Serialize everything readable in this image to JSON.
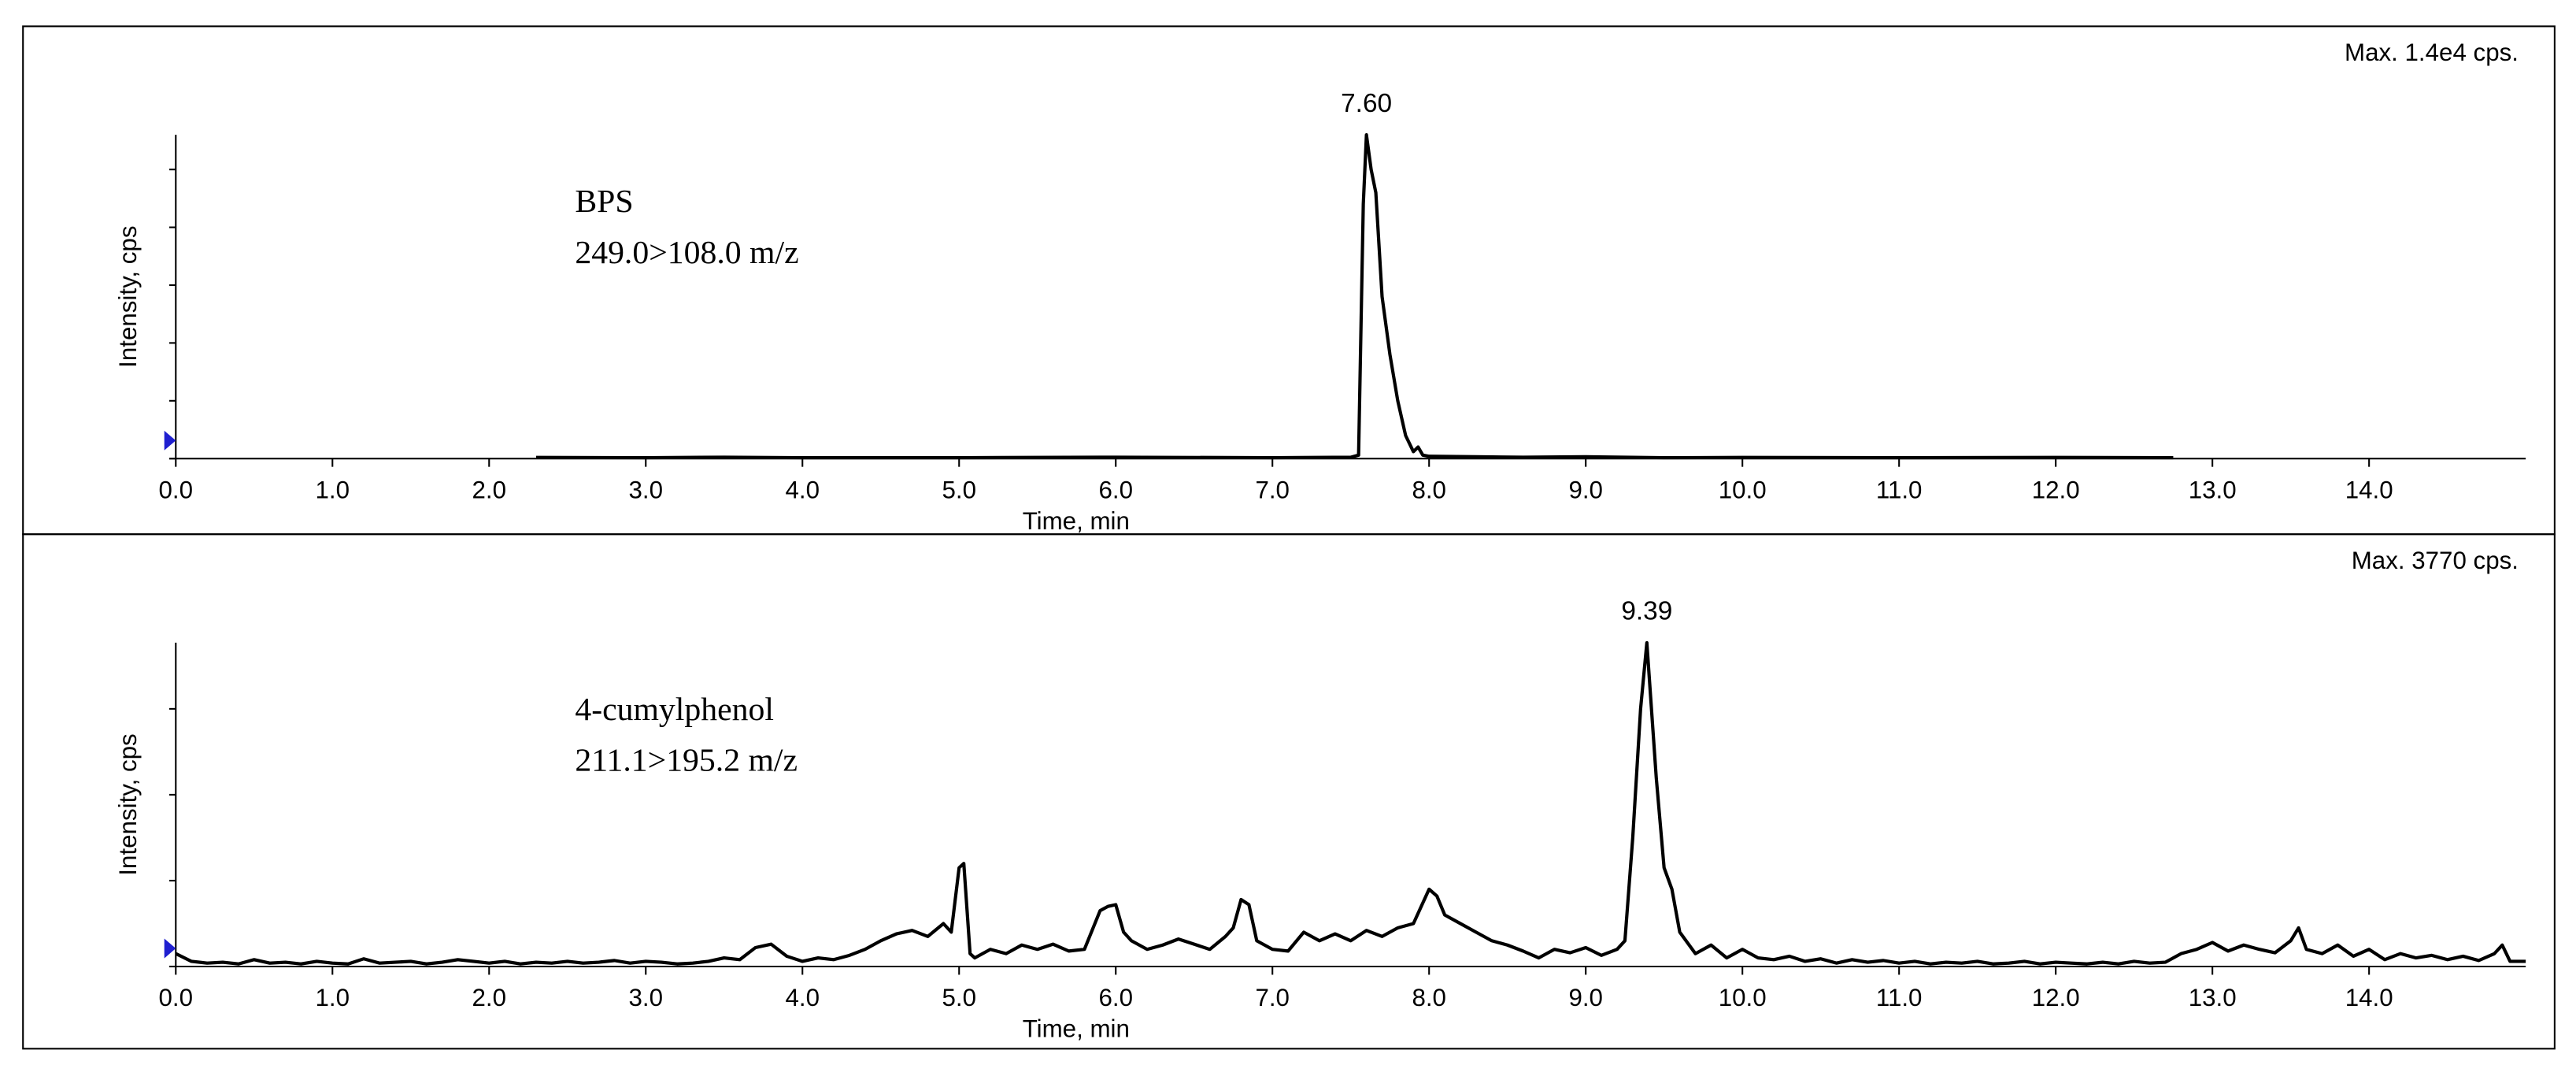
{
  "chart_data": [
    {
      "type": "line",
      "color": "#000000",
      "max_label": "Max. 1.4e4 cps.",
      "compound": "BPS",
      "transition": "249.0>108.0 m/z",
      "peak_label": "7.60",
      "xlabel": "Time, min",
      "ylabel": "Intensity, cps",
      "xlim": [
        0,
        15
      ],
      "ylim": [
        0,
        14000
      ],
      "xticks": [
        {
          "value": 0,
          "label": "0.0"
        },
        {
          "value": 1,
          "label": "1.0"
        },
        {
          "value": 2,
          "label": "2.0"
        },
        {
          "value": 3,
          "label": "3.0"
        },
        {
          "value": 4,
          "label": "4.0"
        },
        {
          "value": 5,
          "label": "5.0"
        },
        {
          "value": 6,
          "label": "6.0"
        },
        {
          "value": 7,
          "label": "7.0"
        },
        {
          "value": 8,
          "label": "8.0"
        },
        {
          "value": 9,
          "label": "9.0"
        },
        {
          "value": 10,
          "label": "10.0"
        },
        {
          "value": 11,
          "label": "11.0"
        },
        {
          "value": 12,
          "label": "12.0"
        },
        {
          "value": 13,
          "label": "13.0"
        },
        {
          "value": 14,
          "label": "14.0"
        }
      ],
      "yticks": [
        0,
        2500,
        5000,
        7500,
        10000,
        12500
      ],
      "x": [
        2.3,
        3.0,
        3.5,
        4.0,
        5.0,
        6.0,
        7.0,
        7.5,
        7.55,
        7.58,
        7.6,
        7.63,
        7.66,
        7.7,
        7.75,
        7.8,
        7.85,
        7.9,
        7.93,
        7.96,
        8.0,
        8.3,
        8.6,
        9.0,
        9.5,
        10.0,
        11.0,
        12.0,
        12.75
      ],
      "values": [
        50,
        40,
        60,
        40,
        40,
        60,
        40,
        60,
        150,
        11000,
        14000,
        12500,
        11500,
        7000,
        4500,
        2500,
        1000,
        300,
        500,
        150,
        100,
        80,
        60,
        80,
        40,
        50,
        40,
        50,
        40
      ]
    },
    {
      "type": "line",
      "color": "#000000",
      "max_label": "Max. 3770 cps.",
      "compound": "4-cumylphenol",
      "transition": "211.1>195.2 m/z",
      "peak_label": "9.39",
      "xlabel": "Time, min",
      "ylabel": "Intensity, cps",
      "xlim": [
        0,
        15
      ],
      "ylim": [
        0,
        3770
      ],
      "xticks": [
        {
          "value": 0,
          "label": "0.0"
        },
        {
          "value": 1,
          "label": "1.0"
        },
        {
          "value": 2,
          "label": "2.0"
        },
        {
          "value": 3,
          "label": "3.0"
        },
        {
          "value": 4,
          "label": "4.0"
        },
        {
          "value": 5,
          "label": "5.0"
        },
        {
          "value": 6,
          "label": "6.0"
        },
        {
          "value": 7,
          "label": "7.0"
        },
        {
          "value": 8,
          "label": "8.0"
        },
        {
          "value": 9,
          "label": "9.0"
        },
        {
          "value": 10,
          "label": "10.0"
        },
        {
          "value": 11,
          "label": "11.0"
        },
        {
          "value": 12,
          "label": "12.0"
        },
        {
          "value": 13,
          "label": "13.0"
        },
        {
          "value": 14,
          "label": "14.0"
        }
      ],
      "yticks": [
        0,
        1000,
        2000,
        3000
      ],
      "x": [
        0.0,
        0.1,
        0.2,
        0.3,
        0.4,
        0.5,
        0.6,
        0.7,
        0.8,
        0.9,
        1.0,
        1.1,
        1.2,
        1.3,
        1.4,
        1.5,
        1.6,
        1.7,
        1.8,
        1.9,
        2.0,
        2.1,
        2.2,
        2.3,
        2.4,
        2.5,
        2.6,
        2.7,
        2.8,
        2.9,
        3.0,
        3.1,
        3.2,
        3.3,
        3.4,
        3.5,
        3.6,
        3.7,
        3.8,
        3.9,
        4.0,
        4.1,
        4.2,
        4.3,
        4.4,
        4.5,
        4.6,
        4.7,
        4.8,
        4.9,
        4.95,
        5.0,
        5.03,
        5.07,
        5.1,
        5.2,
        5.3,
        5.4,
        5.5,
        5.6,
        5.7,
        5.8,
        5.9,
        5.95,
        6.0,
        6.05,
        6.1,
        6.2,
        6.3,
        6.4,
        6.5,
        6.6,
        6.7,
        6.75,
        6.8,
        6.85,
        6.9,
        7.0,
        7.1,
        7.2,
        7.3,
        7.4,
        7.5,
        7.6,
        7.7,
        7.8,
        7.9,
        8.0,
        8.05,
        8.1,
        8.2,
        8.3,
        8.4,
        8.5,
        8.6,
        8.7,
        8.8,
        8.9,
        9.0,
        9.1,
        9.2,
        9.25,
        9.3,
        9.35,
        9.39,
        9.45,
        9.5,
        9.55,
        9.6,
        9.7,
        9.8,
        9.9,
        10.0,
        10.1,
        10.2,
        10.3,
        10.4,
        10.5,
        10.6,
        10.7,
        10.8,
        10.9,
        11.0,
        11.1,
        11.2,
        11.3,
        11.4,
        11.5,
        11.6,
        11.7,
        11.8,
        11.9,
        12.0,
        12.1,
        12.2,
        12.3,
        12.4,
        12.5,
        12.6,
        12.7,
        12.8,
        12.9,
        13.0,
        13.1,
        13.2,
        13.3,
        13.4,
        13.5,
        13.55,
        13.6,
        13.7,
        13.8,
        13.9,
        14.0,
        14.1,
        14.2,
        14.3,
        14.4,
        14.5,
        14.6,
        14.7,
        14.8,
        14.85,
        14.9,
        15.0
      ],
      "values": [
        150,
        60,
        40,
        50,
        30,
        80,
        40,
        50,
        30,
        60,
        40,
        30,
        90,
        40,
        50,
        60,
        30,
        50,
        80,
        60,
        40,
        60,
        30,
        50,
        40,
        60,
        40,
        50,
        70,
        40,
        60,
        50,
        30,
        40,
        60,
        100,
        80,
        220,
        260,
        120,
        60,
        100,
        80,
        130,
        200,
        300,
        380,
        420,
        350,
        500,
        400,
        1150,
        1200,
        150,
        100,
        200,
        150,
        250,
        200,
        260,
        180,
        200,
        650,
        700,
        720,
        400,
        300,
        200,
        250,
        320,
        260,
        200,
        350,
        450,
        780,
        720,
        300,
        200,
        180,
        400,
        300,
        380,
        300,
        420,
        350,
        450,
        500,
        900,
        820,
        600,
        500,
        400,
        300,
        250,
        180,
        100,
        200,
        160,
        220,
        130,
        200,
        300,
        1500,
        3000,
        3770,
        2200,
        1150,
        900,
        400,
        150,
        250,
        100,
        200,
        100,
        80,
        120,
        60,
        90,
        40,
        80,
        50,
        70,
        40,
        60,
        30,
        50,
        40,
        60,
        30,
        40,
        60,
        30,
        50,
        40,
        30,
        50,
        30,
        60,
        40,
        50,
        150,
        200,
        280,
        180,
        250,
        200,
        160,
        300,
        450,
        200,
        150,
        250,
        120,
        200,
        80,
        150,
        100,
        130,
        80,
        120,
        70,
        150,
        250,
        60,
        60
      ]
    }
  ]
}
